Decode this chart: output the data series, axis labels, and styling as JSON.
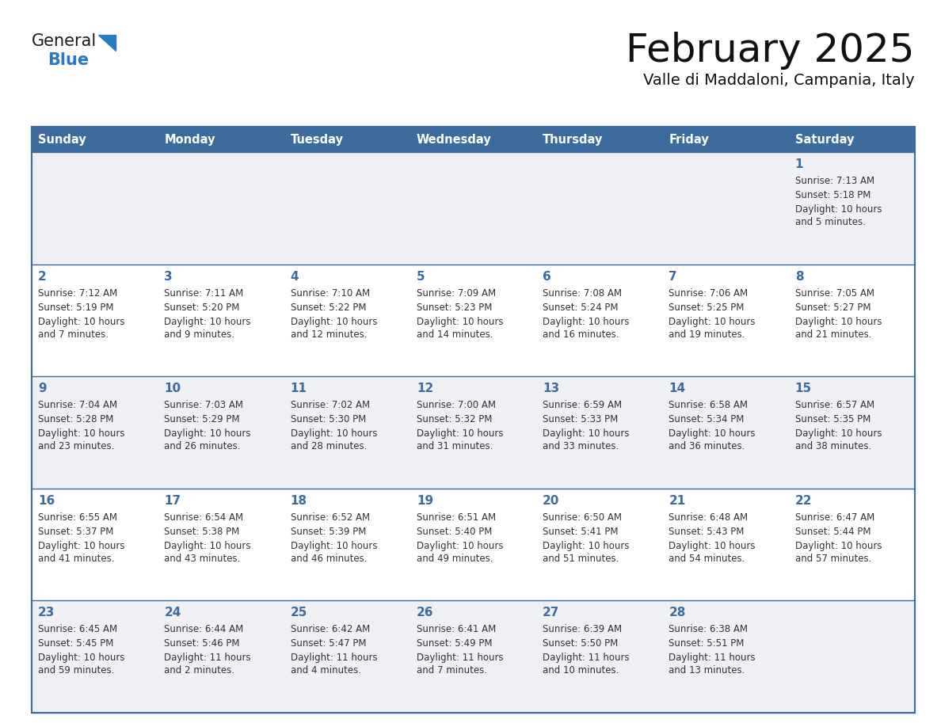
{
  "title": "February 2025",
  "subtitle": "Valle di Maddaloni, Campania, Italy",
  "days_of_week": [
    "Sunday",
    "Monday",
    "Tuesday",
    "Wednesday",
    "Thursday",
    "Friday",
    "Saturday"
  ],
  "header_bg": "#3d6b9e",
  "header_text": "#ffffff",
  "row_bg_odd": "#eef0f3",
  "row_bg_even": "#ffffff",
  "border_color": "#3d6b9e",
  "day_num_color": "#3d6b9e",
  "text_color": "#333333",
  "logo_black": "#1a1a1a",
  "logo_blue": "#2a7abf",
  "calendar_data": [
    [
      {
        "day": null,
        "sunrise": null,
        "sunset": null,
        "daylight": null
      },
      {
        "day": null,
        "sunrise": null,
        "sunset": null,
        "daylight": null
      },
      {
        "day": null,
        "sunrise": null,
        "sunset": null,
        "daylight": null
      },
      {
        "day": null,
        "sunrise": null,
        "sunset": null,
        "daylight": null
      },
      {
        "day": null,
        "sunrise": null,
        "sunset": null,
        "daylight": null
      },
      {
        "day": null,
        "sunrise": null,
        "sunset": null,
        "daylight": null
      },
      {
        "day": 1,
        "sunrise": "7:13 AM",
        "sunset": "5:18 PM",
        "daylight": "10 hours\nand 5 minutes."
      }
    ],
    [
      {
        "day": 2,
        "sunrise": "7:12 AM",
        "sunset": "5:19 PM",
        "daylight": "10 hours\nand 7 minutes."
      },
      {
        "day": 3,
        "sunrise": "7:11 AM",
        "sunset": "5:20 PM",
        "daylight": "10 hours\nand 9 minutes."
      },
      {
        "day": 4,
        "sunrise": "7:10 AM",
        "sunset": "5:22 PM",
        "daylight": "10 hours\nand 12 minutes."
      },
      {
        "day": 5,
        "sunrise": "7:09 AM",
        "sunset": "5:23 PM",
        "daylight": "10 hours\nand 14 minutes."
      },
      {
        "day": 6,
        "sunrise": "7:08 AM",
        "sunset": "5:24 PM",
        "daylight": "10 hours\nand 16 minutes."
      },
      {
        "day": 7,
        "sunrise": "7:06 AM",
        "sunset": "5:25 PM",
        "daylight": "10 hours\nand 19 minutes."
      },
      {
        "day": 8,
        "sunrise": "7:05 AM",
        "sunset": "5:27 PM",
        "daylight": "10 hours\nand 21 minutes."
      }
    ],
    [
      {
        "day": 9,
        "sunrise": "7:04 AM",
        "sunset": "5:28 PM",
        "daylight": "10 hours\nand 23 minutes."
      },
      {
        "day": 10,
        "sunrise": "7:03 AM",
        "sunset": "5:29 PM",
        "daylight": "10 hours\nand 26 minutes."
      },
      {
        "day": 11,
        "sunrise": "7:02 AM",
        "sunset": "5:30 PM",
        "daylight": "10 hours\nand 28 minutes."
      },
      {
        "day": 12,
        "sunrise": "7:00 AM",
        "sunset": "5:32 PM",
        "daylight": "10 hours\nand 31 minutes."
      },
      {
        "day": 13,
        "sunrise": "6:59 AM",
        "sunset": "5:33 PM",
        "daylight": "10 hours\nand 33 minutes."
      },
      {
        "day": 14,
        "sunrise": "6:58 AM",
        "sunset": "5:34 PM",
        "daylight": "10 hours\nand 36 minutes."
      },
      {
        "day": 15,
        "sunrise": "6:57 AM",
        "sunset": "5:35 PM",
        "daylight": "10 hours\nand 38 minutes."
      }
    ],
    [
      {
        "day": 16,
        "sunrise": "6:55 AM",
        "sunset": "5:37 PM",
        "daylight": "10 hours\nand 41 minutes."
      },
      {
        "day": 17,
        "sunrise": "6:54 AM",
        "sunset": "5:38 PM",
        "daylight": "10 hours\nand 43 minutes."
      },
      {
        "day": 18,
        "sunrise": "6:52 AM",
        "sunset": "5:39 PM",
        "daylight": "10 hours\nand 46 minutes."
      },
      {
        "day": 19,
        "sunrise": "6:51 AM",
        "sunset": "5:40 PM",
        "daylight": "10 hours\nand 49 minutes."
      },
      {
        "day": 20,
        "sunrise": "6:50 AM",
        "sunset": "5:41 PM",
        "daylight": "10 hours\nand 51 minutes."
      },
      {
        "day": 21,
        "sunrise": "6:48 AM",
        "sunset": "5:43 PM",
        "daylight": "10 hours\nand 54 minutes."
      },
      {
        "day": 22,
        "sunrise": "6:47 AM",
        "sunset": "5:44 PM",
        "daylight": "10 hours\nand 57 minutes."
      }
    ],
    [
      {
        "day": 23,
        "sunrise": "6:45 AM",
        "sunset": "5:45 PM",
        "daylight": "10 hours\nand 59 minutes."
      },
      {
        "day": 24,
        "sunrise": "6:44 AM",
        "sunset": "5:46 PM",
        "daylight": "11 hours\nand 2 minutes."
      },
      {
        "day": 25,
        "sunrise": "6:42 AM",
        "sunset": "5:47 PM",
        "daylight": "11 hours\nand 4 minutes."
      },
      {
        "day": 26,
        "sunrise": "6:41 AM",
        "sunset": "5:49 PM",
        "daylight": "11 hours\nand 7 minutes."
      },
      {
        "day": 27,
        "sunrise": "6:39 AM",
        "sunset": "5:50 PM",
        "daylight": "11 hours\nand 10 minutes."
      },
      {
        "day": 28,
        "sunrise": "6:38 AM",
        "sunset": "5:51 PM",
        "daylight": "11 hours\nand 13 minutes."
      },
      {
        "day": null,
        "sunrise": null,
        "sunset": null,
        "daylight": null
      }
    ]
  ]
}
